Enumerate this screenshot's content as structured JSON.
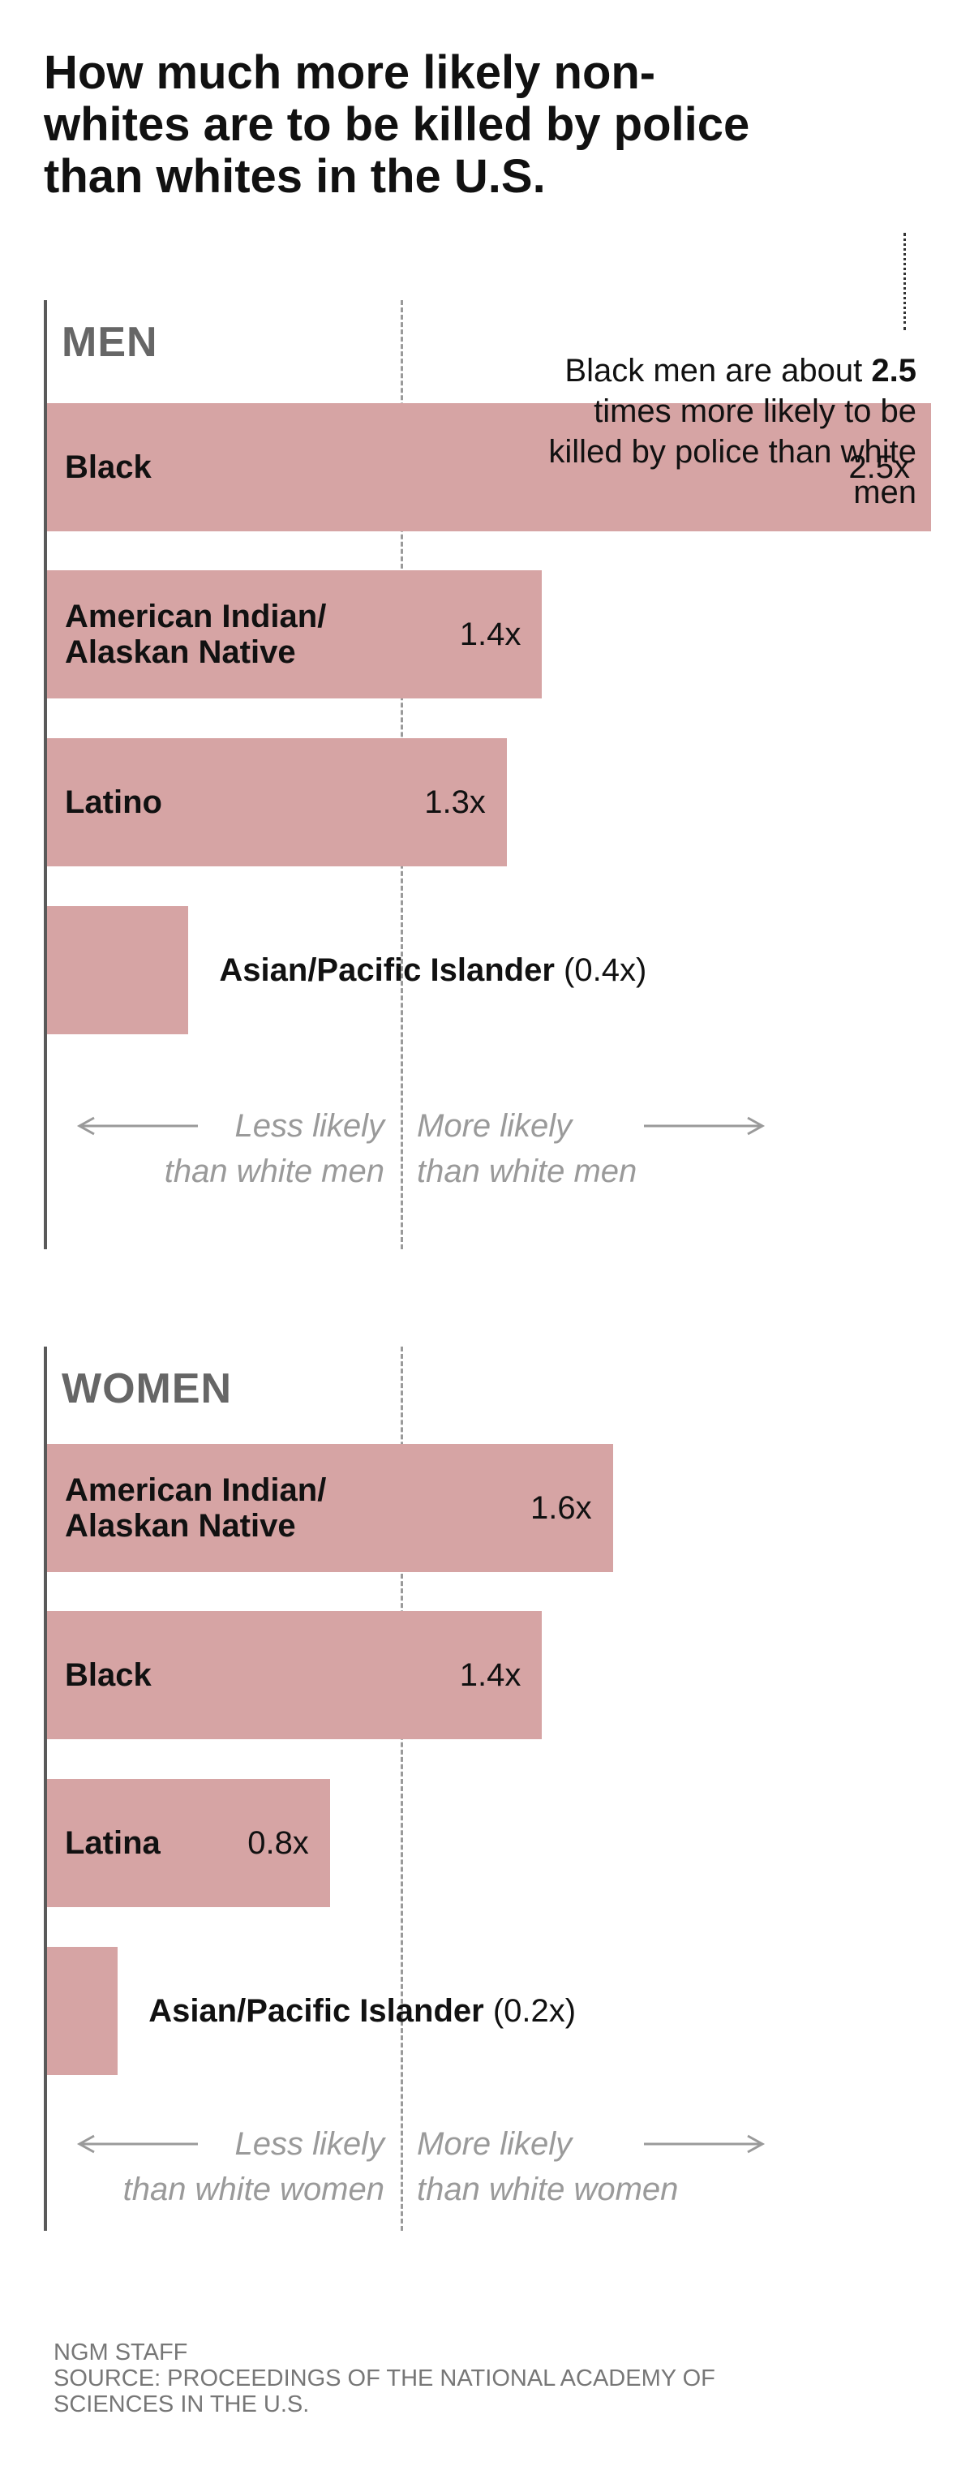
{
  "title": "How much more likely non-\nwhites are to be killed by police\nthan whites in the U.S.",
  "chart_data": [
    {
      "type": "bar",
      "orientation": "horizontal",
      "title": "MEN",
      "categories": [
        "Black",
        "American Indian/\nAlaskan Native",
        "Latino",
        "Asian/Pacific Islander"
      ],
      "values": [
        2.5,
        1.4,
        1.3,
        0.4
      ],
      "value_labels": [
        "2.5x",
        "1.4x",
        "1.3x",
        "(0.4x)"
      ],
      "reference_value": 1.0,
      "direction_labels": {
        "less": "Less likely\nthan white men",
        "more": "More likely\nthan white men"
      },
      "annotation": {
        "before": "Black men are about ",
        "number": "2.5",
        "after": " times more likely to be killed by police than white men"
      }
    },
    {
      "type": "bar",
      "orientation": "horizontal",
      "title": "WOMEN",
      "categories": [
        "American Indian/\nAlaskan Native",
        "Black",
        "Latina",
        "Asian/Pacific Islander"
      ],
      "values": [
        1.6,
        1.4,
        0.8,
        0.2
      ],
      "value_labels": [
        "1.6x",
        "1.4x",
        "0.8x",
        "(0.2x)"
      ],
      "reference_value": 1.0,
      "direction_labels": {
        "less": "Less likely\nthan white women",
        "more": "More likely\nthan white women"
      }
    }
  ],
  "colors": {
    "bar": "#d6a4a4",
    "axis": "#5a5a5a",
    "reference": "#9a9a9a",
    "direction_text": "#9a9a9a",
    "section_title": "#666666"
  },
  "footer": {
    "credit": "NGM STAFF",
    "source": "SOURCE: PROCEEDINGS OF THE NATIONAL ACADEMY OF\nSCIENCES IN THE U.S."
  }
}
